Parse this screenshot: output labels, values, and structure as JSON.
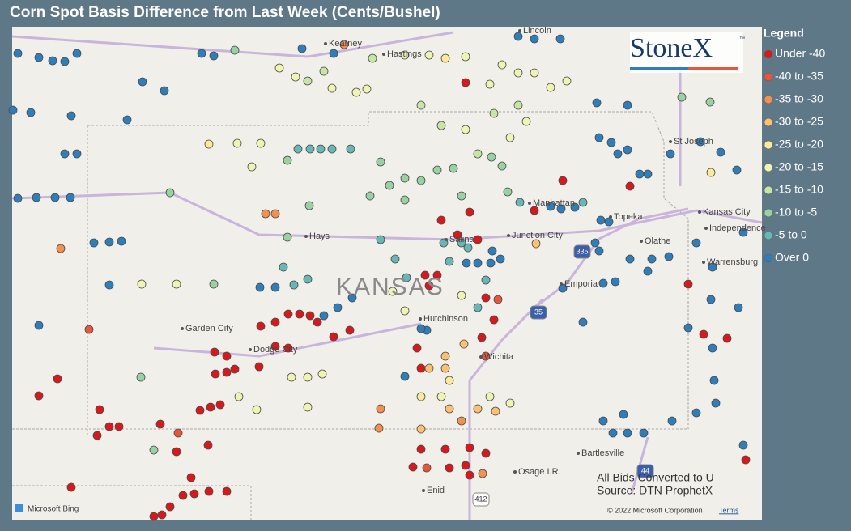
{
  "header": {
    "title": "Corn Spot Basis Difference from Last Week (Cents/Bushel)"
  },
  "legend": {
    "title": "Legend",
    "items": [
      {
        "label": "Under -40",
        "color": "#d7191c"
      },
      {
        "label": "-40 to -35",
        "color": "#e8553a"
      },
      {
        "label": "-35 to -30",
        "color": "#f2904f"
      },
      {
        "label": "-30 to -25",
        "color": "#fdc070"
      },
      {
        "label": "-25 to -20",
        "color": "#fde99a"
      },
      {
        "label": "-20 to -15",
        "color": "#eef5b2"
      },
      {
        "label": "-15 to -10",
        "color": "#c6e6a6"
      },
      {
        "label": "-10 to -5",
        "color": "#98d1a2"
      },
      {
        "label": "-5 to 0",
        "color": "#66b7b6"
      },
      {
        "label": "Over 0",
        "color": "#2e7ebb"
      }
    ]
  },
  "map": {
    "places": [
      "Kearney",
      "Hastings",
      "Lincoln",
      "St Joseph",
      "Manhattan",
      "Topeka",
      "Kansas City",
      "Independence",
      "Olathe",
      "Junction City",
      "Salina",
      "Hays",
      "Garden City",
      "Dodge City",
      "Hutchinson",
      "Emporia",
      "Warrensburg",
      "Wichita",
      "Bartlesville",
      "Osage I.R.",
      "Enid"
    ],
    "state": "KANSAS",
    "highways": [
      "335",
      "35",
      "44",
      "412"
    ],
    "logo": "StoneX",
    "logo_mark": "™",
    "notes": [
      "All Bids Converted to U",
      "Source: DTN ProphetX"
    ],
    "bing": "Microsoft Bing",
    "copyright": "© 2022 Microsoft Corporation",
    "terms": "Terms"
  }
}
